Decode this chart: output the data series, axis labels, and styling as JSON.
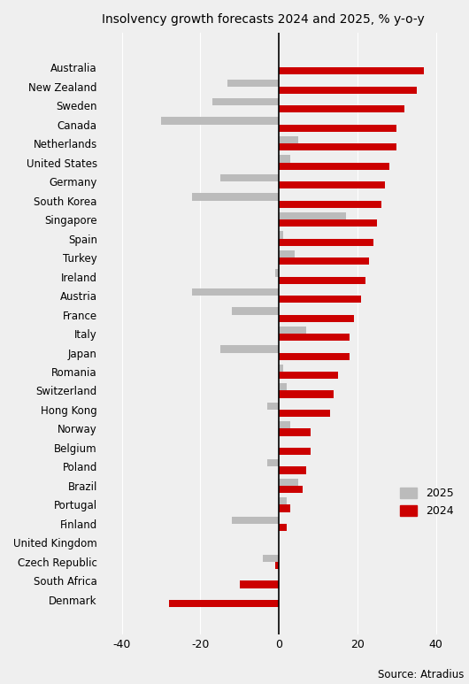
{
  "title": "Insolvency growth forecasts 2024 and 2025, % y-o-y",
  "countries": [
    "Australia",
    "New Zealand",
    "Sweden",
    "Canada",
    "Netherlands",
    "United States",
    "Germany",
    "South Korea",
    "Singapore",
    "Spain",
    "Turkey",
    "Ireland",
    "Austria",
    "France",
    "Italy",
    "Japan",
    "Romania",
    "Switzerland",
    "Hong Kong",
    "Norway",
    "Belgium",
    "Poland",
    "Brazil",
    "Portugal",
    "Finland",
    "United Kingdom",
    "Czech Republic",
    "South Africa",
    "Denmark"
  ],
  "values_2024": [
    37,
    35,
    32,
    30,
    30,
    28,
    27,
    26,
    25,
    24,
    23,
    22,
    21,
    19,
    18,
    18,
    15,
    14,
    13,
    8,
    8,
    7,
    6,
    3,
    2,
    0,
    -1,
    -10,
    -28
  ],
  "values_2025": [
    0,
    -13,
    -17,
    -30,
    5,
    3,
    -15,
    -22,
    17,
    1,
    4,
    -1,
    -22,
    -12,
    7,
    -15,
    1,
    2,
    -3,
    3,
    0,
    -3,
    5,
    2,
    -12,
    0,
    -4,
    0,
    0
  ],
  "color_2024": "#cc0000",
  "color_2025": "#bbbbbb",
  "background_color": "#efefef",
  "xlim": [
    -45,
    45
  ],
  "xticks": [
    -40,
    -20,
    0,
    20,
    40
  ],
  "source_text": "Source: Atradius"
}
